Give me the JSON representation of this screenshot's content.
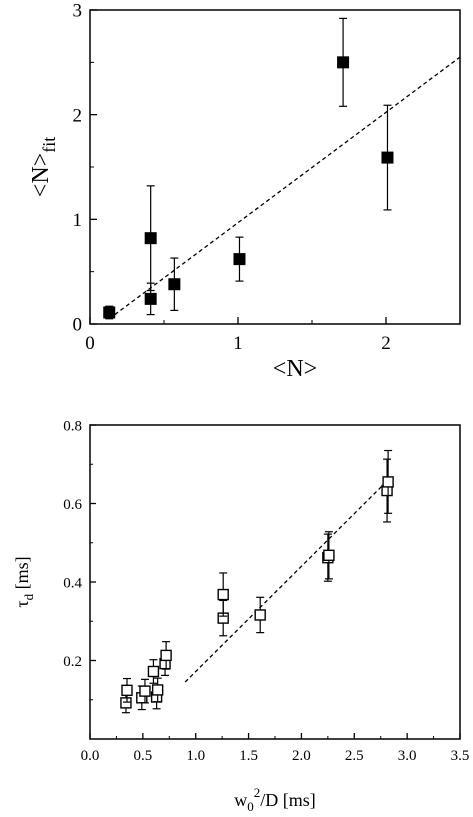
{
  "chart_data": [
    {
      "type": "scatter",
      "marker": "filled-square",
      "xlabel": "<N>",
      "ylabel": "<N>",
      "ylabel_sub": "fit",
      "xlim": [
        0,
        2.5
      ],
      "ylim": [
        0,
        3
      ],
      "x_ticks": [
        0,
        1,
        2
      ],
      "y_ticks": [
        0,
        1,
        2,
        3
      ],
      "grid": false,
      "points": [
        {
          "x": 0.13,
          "y": 0.11,
          "err": 0.06
        },
        {
          "x": 0.41,
          "y": 0.82,
          "err": 0.5
        },
        {
          "x": 0.41,
          "y": 0.24,
          "err": 0.15
        },
        {
          "x": 0.57,
          "y": 0.38,
          "err": 0.25
        },
        {
          "x": 1.01,
          "y": 0.62,
          "err": 0.21
        },
        {
          "x": 1.71,
          "y": 2.5,
          "err": 0.42
        },
        {
          "x": 2.01,
          "y": 1.59,
          "err": 0.5
        }
      ],
      "fit_line": {
        "x": [
          0.13,
          2.5
        ],
        "y": [
          0.05,
          2.55
        ]
      }
    },
    {
      "type": "scatter",
      "marker": "open-square",
      "xlabel": "w",
      "xlabel_sub": "0",
      "xlabel_sup": "2",
      "xlabel_rest": "/D [ms]",
      "ylabel": "τ",
      "ylabel_sub": "d",
      "ylabel_rest": " [ms]",
      "xlim": [
        0.0,
        3.5
      ],
      "ylim": [
        0.0,
        0.8
      ],
      "x_ticks": [
        "0.0",
        "0.5",
        "1.0",
        "1.5",
        "2.0",
        "2.5",
        "3.0",
        "3.5"
      ],
      "y_ticks": [
        "0.2",
        "0.4",
        "0.6",
        "0.8"
      ],
      "grid": false,
      "points": [
        {
          "x": 0.34,
          "y": 0.092,
          "err": 0.025
        },
        {
          "x": 0.35,
          "y": 0.124,
          "err": 0.03
        },
        {
          "x": 0.49,
          "y": 0.105,
          "err": 0.03
        },
        {
          "x": 0.52,
          "y": 0.122,
          "err": 0.03
        },
        {
          "x": 0.6,
          "y": 0.172,
          "err": 0.03
        },
        {
          "x": 0.63,
          "y": 0.107,
          "err": 0.03
        },
        {
          "x": 0.64,
          "y": 0.125,
          "err": 0.03
        },
        {
          "x": 0.71,
          "y": 0.192,
          "err": 0.03
        },
        {
          "x": 0.72,
          "y": 0.213,
          "err": 0.035
        },
        {
          "x": 1.26,
          "y": 0.308,
          "err": 0.045
        },
        {
          "x": 1.26,
          "y": 0.368,
          "err": 0.055
        },
        {
          "x": 1.61,
          "y": 0.316,
          "err": 0.045
        },
        {
          "x": 2.25,
          "y": 0.462,
          "err": 0.06
        },
        {
          "x": 2.26,
          "y": 0.468,
          "err": 0.06
        },
        {
          "x": 2.81,
          "y": 0.633,
          "err": 0.08
        },
        {
          "x": 2.82,
          "y": 0.655,
          "err": 0.08
        }
      ],
      "fit_line": {
        "x": [
          0.9,
          2.85
        ],
        "y": [
          0.145,
          0.668
        ]
      }
    }
  ]
}
